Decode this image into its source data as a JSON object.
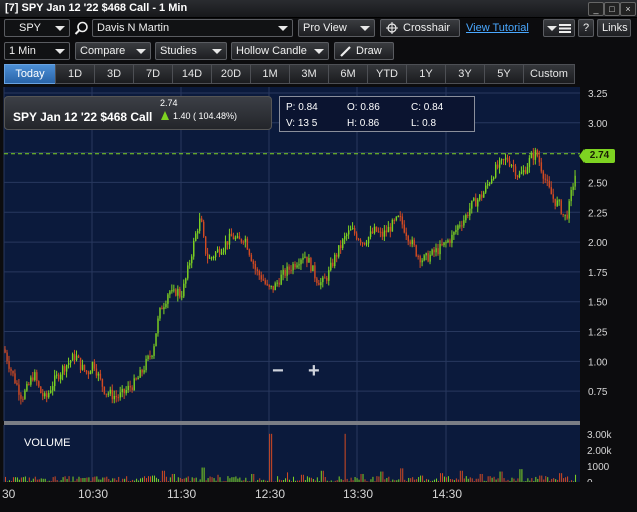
{
  "window": {
    "title": "[7] SPY Jan 12 '22 $468 Call - 1 Min",
    "minimize": "_",
    "maximize": "□",
    "close": "×"
  },
  "toolbar1": {
    "symbol": "SPY",
    "account": "Davis N Martin",
    "view": "Pro View",
    "crosshair": "Crosshair",
    "tutorial": "View Tutorial",
    "help": "?",
    "links": "Links"
  },
  "toolbar2": {
    "interval": "1 Min",
    "compare": "Compare",
    "studies": "Studies",
    "candle": "Hollow Candle",
    "draw": "Draw"
  },
  "ranges": [
    "Today",
    "1D",
    "3D",
    "7D",
    "14D",
    "20D",
    "1M",
    "3M",
    "6M",
    "YTD",
    "1Y",
    "3Y",
    "5Y",
    "Custom"
  ],
  "active_range": "Today",
  "legend": {
    "name": "SPY Jan 12 '22 $468 Call",
    "last": "2.74",
    "change": "1.40 ( 104.48%)"
  },
  "ohlc": {
    "p": "P: 0.84",
    "o": "O: 0.86",
    "c": "C: 0.84",
    "v": "V: 13 5",
    "h": "H: 0.86",
    "l": "L: 0.8"
  },
  "price_tag": "2.74",
  "colors": {
    "bg": "#0b1a3c",
    "up": "#7ed321",
    "down": "#d24a22",
    "grid": "#28385e",
    "accent": "#4aa8ff"
  },
  "zoom": {
    "minus": "−",
    "plus": "+"
  },
  "chart_data": {
    "type": "candlestick",
    "y_ticks": [
      "3.25",
      "3.00",
      "2.75",
      "2.50",
      "2.25",
      "2.00",
      "1.75",
      "1.50",
      "1.25",
      "1.00",
      "0.75"
    ],
    "ylim": [
      0.5,
      3.3
    ],
    "x_ticks": [
      "30",
      "10:30",
      "11:30",
      "12:30",
      "13:30",
      "14:30"
    ],
    "volume_label": "VOLUME",
    "volume_ticks": [
      "3.00k",
      "2.00k",
      "1000",
      "0"
    ],
    "last_price": 2.74,
    "price_path": [
      [
        0,
        1.1
      ],
      [
        6,
        0.95
      ],
      [
        12,
        0.82
      ],
      [
        18,
        0.7
      ],
      [
        24,
        0.78
      ],
      [
        30,
        0.9
      ],
      [
        36,
        0.75
      ],
      [
        42,
        0.68
      ],
      [
        48,
        0.8
      ],
      [
        54,
        0.88
      ],
      [
        60,
        0.95
      ],
      [
        66,
        1.0
      ],
      [
        72,
        1.05
      ],
      [
        78,
        0.95
      ],
      [
        84,
        0.9
      ],
      [
        90,
        1.0
      ],
      [
        96,
        0.85
      ],
      [
        102,
        0.75
      ],
      [
        108,
        0.72
      ],
      [
        114,
        0.7
      ],
      [
        120,
        0.73
      ],
      [
        126,
        0.78
      ],
      [
        132,
        0.82
      ],
      [
        138,
        0.9
      ],
      [
        144,
        1.0
      ],
      [
        150,
        1.1
      ],
      [
        154,
        1.3
      ],
      [
        158,
        1.45
      ],
      [
        162,
        1.5
      ],
      [
        166,
        1.6
      ],
      [
        170,
        1.55
      ],
      [
        174,
        1.6
      ],
      [
        178,
        1.55
      ],
      [
        182,
        1.65
      ],
      [
        186,
        1.8
      ],
      [
        190,
        1.95
      ],
      [
        194,
        2.1
      ],
      [
        198,
        2.2
      ],
      [
        202,
        1.95
      ],
      [
        206,
        1.85
      ],
      [
        212,
        1.9
      ],
      [
        218,
        1.95
      ],
      [
        224,
        2.0
      ],
      [
        230,
        2.05
      ],
      [
        236,
        2.0
      ],
      [
        242,
        2.05
      ],
      [
        248,
        1.9
      ],
      [
        254,
        1.75
      ],
      [
        260,
        1.7
      ],
      [
        266,
        1.6
      ],
      [
        272,
        1.62
      ],
      [
        278,
        1.7
      ],
      [
        284,
        1.75
      ],
      [
        290,
        1.8
      ],
      [
        296,
        1.85
      ],
      [
        302,
        1.9
      ],
      [
        308,
        1.82
      ],
      [
        314,
        1.7
      ],
      [
        320,
        1.65
      ],
      [
        326,
        1.72
      ],
      [
        332,
        1.85
      ],
      [
        338,
        1.95
      ],
      [
        344,
        2.05
      ],
      [
        350,
        2.1
      ],
      [
        356,
        2.05
      ],
      [
        362,
        2.0
      ],
      [
        368,
        2.05
      ],
      [
        374,
        2.1
      ],
      [
        380,
        2.05
      ],
      [
        386,
        2.1
      ],
      [
        392,
        2.15
      ],
      [
        398,
        2.2
      ],
      [
        404,
        2.1
      ],
      [
        410,
        2.0
      ],
      [
        416,
        1.9
      ],
      [
        422,
        1.85
      ],
      [
        428,
        1.88
      ],
      [
        434,
        1.92
      ],
      [
        440,
        1.95
      ],
      [
        446,
        2.0
      ],
      [
        452,
        2.05
      ],
      [
        458,
        2.15
      ],
      [
        464,
        2.2
      ],
      [
        470,
        2.3
      ],
      [
        476,
        2.35
      ],
      [
        482,
        2.4
      ],
      [
        488,
        2.5
      ],
      [
        494,
        2.6
      ],
      [
        500,
        2.65
      ],
      [
        506,
        2.7
      ],
      [
        512,
        2.65
      ],
      [
        518,
        2.55
      ],
      [
        524,
        2.6
      ],
      [
        530,
        2.7
      ],
      [
        536,
        2.75
      ],
      [
        542,
        2.6
      ],
      [
        548,
        2.45
      ],
      [
        554,
        2.35
      ],
      [
        560,
        2.3
      ],
      [
        564,
        2.2
      ],
      [
        568,
        2.25
      ],
      [
        572,
        2.45
      ],
      [
        576,
        2.6
      ],
      [
        580,
        2.74
      ]
    ],
    "volume": [
      [
        10,
        300
      ],
      [
        40,
        200
      ],
      [
        80,
        250
      ],
      [
        100,
        280
      ],
      [
        120,
        200
      ],
      [
        150,
        400
      ],
      [
        160,
        700
      ],
      [
        170,
        500
      ],
      [
        185,
        350
      ],
      [
        200,
        900
      ],
      [
        215,
        450
      ],
      [
        230,
        300
      ],
      [
        250,
        500
      ],
      [
        268,
        3000
      ],
      [
        285,
        600
      ],
      [
        300,
        450
      ],
      [
        320,
        700
      ],
      [
        343,
        3000
      ],
      [
        360,
        500
      ],
      [
        380,
        650
      ],
      [
        400,
        850
      ],
      [
        420,
        400
      ],
      [
        440,
        550
      ],
      [
        460,
        700
      ],
      [
        480,
        500
      ],
      [
        500,
        650
      ],
      [
        520,
        800
      ],
      [
        540,
        400
      ],
      [
        560,
        550
      ],
      [
        575,
        450
      ]
    ]
  }
}
